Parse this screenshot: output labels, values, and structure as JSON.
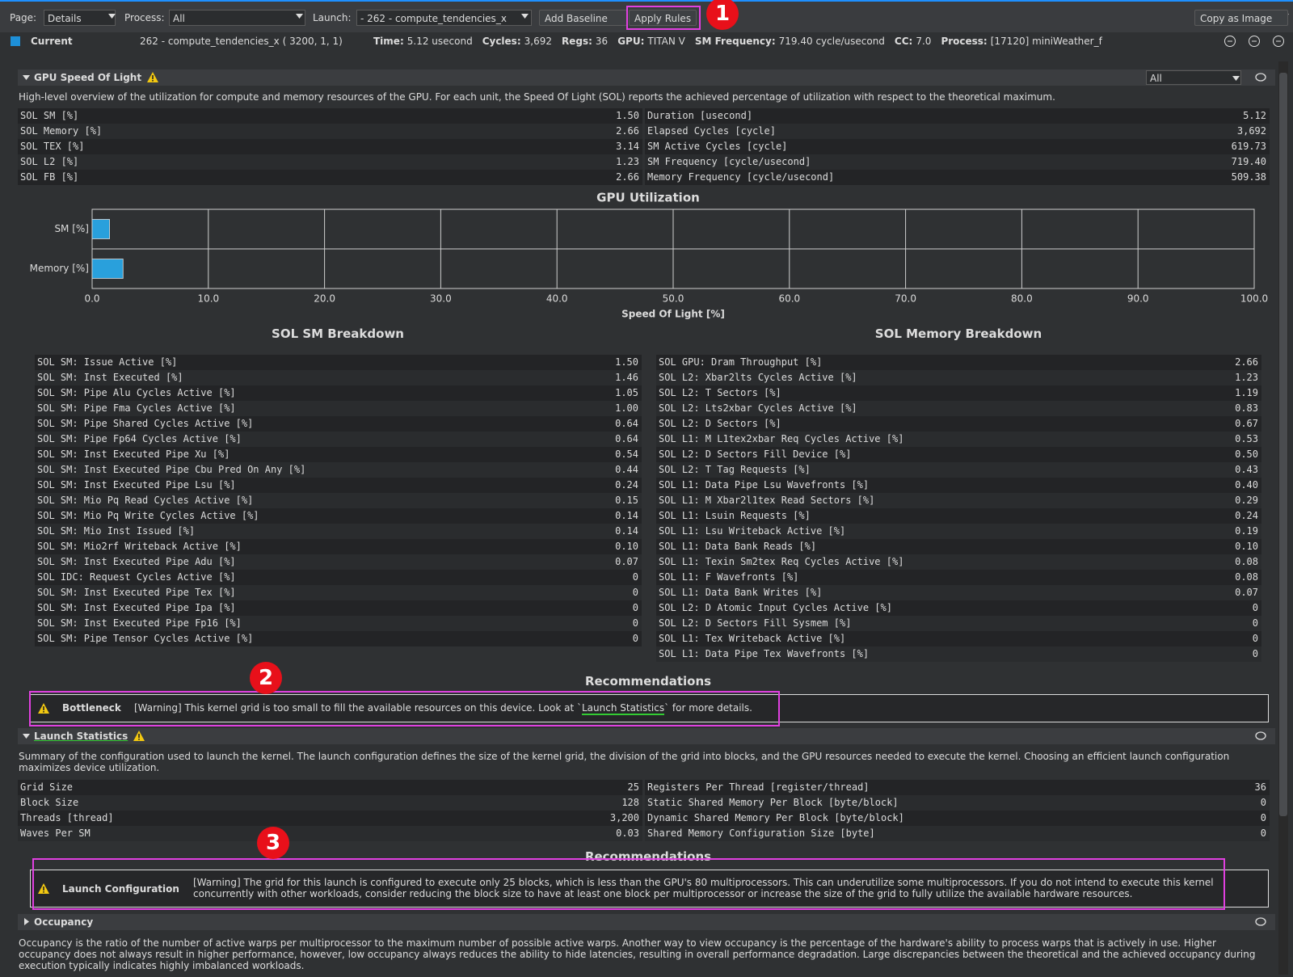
{
  "toolbar": {
    "page_label": "Page:",
    "page_value": "Details",
    "process_label": "Process:",
    "process_value": "All",
    "launch_label": "Launch:",
    "launch_value": "-  262 - compute_tendencies_x",
    "add_baseline": "Add Baseline",
    "apply_rules": "Apply Rules",
    "copy_as_image": "Copy as Image"
  },
  "current": {
    "label": "Current",
    "kernel": "262 - compute_tendencies_x ( 3200,   1,   1)",
    "fields": [
      {
        "label": "Time:",
        "value": "5.12 usecond"
      },
      {
        "label": "Cycles:",
        "value": "3,692"
      },
      {
        "label": "Regs:",
        "value": "36"
      },
      {
        "label": "GPU:",
        "value": "TITAN V"
      },
      {
        "label": "SM Frequency:",
        "value": "719.40 cycle/usecond"
      },
      {
        "label": "CC:",
        "value": "7.0"
      },
      {
        "label": "Process:",
        "value": "[17120] miniWeather_f"
      }
    ]
  },
  "speed_of_light": {
    "title": "GPU Speed Of Light",
    "filter": "All",
    "description": "High-level overview of the utilization for compute and memory resources of the GPU. For each unit, the Speed Of Light (SOL) reports the achieved percentage of utilization with respect to the theoretical maximum.",
    "left_table": [
      [
        "SOL SM [%]",
        "1.50"
      ],
      [
        "SOL Memory [%]",
        "2.66"
      ],
      [
        "SOL TEX [%]",
        "3.14"
      ],
      [
        "SOL L2 [%]",
        "1.23"
      ],
      [
        "SOL FB [%]",
        "2.66"
      ]
    ],
    "right_table": [
      [
        "Duration [usecond]",
        "5.12"
      ],
      [
        "Elapsed Cycles [cycle]",
        "3,692"
      ],
      [
        "SM Active Cycles [cycle]",
        "619.73"
      ],
      [
        "SM Frequency [cycle/usecond]",
        "719.40"
      ],
      [
        "Memory Frequency [cycle/usecond]",
        "509.38"
      ]
    ],
    "utilization_chart": {
      "type": "bar",
      "orientation": "horizontal",
      "title": "GPU Utilization",
      "x_label": "Speed Of Light [%]",
      "categories": [
        "SM [%]",
        "Memory [%]"
      ],
      "values": [
        1.5,
        2.66
      ],
      "color": "#29a0dc",
      "xlim": [
        0,
        100
      ],
      "xticks": [
        {
          "value": 0,
          "label": "0.0"
        },
        {
          "value": 10,
          "label": "10.0"
        },
        {
          "value": 20,
          "label": "20.0"
        },
        {
          "value": 30,
          "label": "30.0"
        },
        {
          "value": 40,
          "label": "40.0"
        },
        {
          "value": 50,
          "label": "50.0"
        },
        {
          "value": 60,
          "label": "60.0"
        },
        {
          "value": 70,
          "label": "70.0"
        },
        {
          "value": 80,
          "label": "80.0"
        },
        {
          "value": 90,
          "label": "90.0"
        },
        {
          "value": 100,
          "label": "100.0"
        }
      ],
      "grid": true
    },
    "sm_breakdown": {
      "title": "SOL SM Breakdown",
      "rows": [
        [
          "SOL SM: Issue Active [%]",
          "1.50"
        ],
        [
          "SOL SM: Inst Executed [%]",
          "1.46"
        ],
        [
          "SOL SM: Pipe Alu Cycles Active [%]",
          "1.05"
        ],
        [
          "SOL SM: Pipe Fma Cycles Active [%]",
          "1.00"
        ],
        [
          "SOL SM: Pipe Shared Cycles Active [%]",
          "0.64"
        ],
        [
          "SOL SM: Pipe Fp64 Cycles Active [%]",
          "0.64"
        ],
        [
          "SOL SM: Inst Executed Pipe Xu [%]",
          "0.54"
        ],
        [
          "SOL SM: Inst Executed Pipe Cbu Pred On Any [%]",
          "0.44"
        ],
        [
          "SOL SM: Inst Executed Pipe Lsu [%]",
          "0.24"
        ],
        [
          "SOL SM: Mio Pq Read Cycles Active [%]",
          "0.15"
        ],
        [
          "SOL SM: Mio Pq Write Cycles Active [%]",
          "0.14"
        ],
        [
          "SOL SM: Mio Inst Issued [%]",
          "0.14"
        ],
        [
          "SOL SM: Mio2rf Writeback Active [%]",
          "0.10"
        ],
        [
          "SOL SM: Inst Executed Pipe Adu [%]",
          "0.07"
        ],
        [
          "SOL IDC: Request Cycles Active [%]",
          "0"
        ],
        [
          "SOL SM: Inst Executed Pipe Tex [%]",
          "0"
        ],
        [
          "SOL SM: Inst Executed Pipe Ipa [%]",
          "0"
        ],
        [
          "SOL SM: Inst Executed Pipe Fp16 [%]",
          "0"
        ],
        [
          "SOL SM: Pipe Tensor Cycles Active [%]",
          "0"
        ]
      ]
    },
    "memory_breakdown": {
      "title": "SOL Memory Breakdown",
      "rows": [
        [
          "SOL GPU: Dram Throughput [%]",
          "2.66"
        ],
        [
          "SOL L2: Xbar2lts Cycles Active [%]",
          "1.23"
        ],
        [
          "SOL L2: T Sectors [%]",
          "1.19"
        ],
        [
          "SOL L2: Lts2xbar Cycles Active [%]",
          "0.83"
        ],
        [
          "SOL L2: D Sectors [%]",
          "0.67"
        ],
        [
          "SOL L1: M L1tex2xbar Req Cycles Active [%]",
          "0.53"
        ],
        [
          "SOL L2: D Sectors Fill Device [%]",
          "0.50"
        ],
        [
          "SOL L2: T Tag Requests [%]",
          "0.43"
        ],
        [
          "SOL L1: Data Pipe Lsu Wavefronts [%]",
          "0.40"
        ],
        [
          "SOL L1: M Xbar2l1tex Read Sectors [%]",
          "0.29"
        ],
        [
          "SOL L1: Lsuin Requests [%]",
          "0.24"
        ],
        [
          "SOL L1: Lsu Writeback Active [%]",
          "0.19"
        ],
        [
          "SOL L1: Data Bank Reads [%]",
          "0.10"
        ],
        [
          "SOL L1: Texin Sm2tex Req Cycles Active [%]",
          "0.08"
        ],
        [
          "SOL L1: F Wavefronts [%]",
          "0.08"
        ],
        [
          "SOL L1: Data Bank Writes [%]",
          "0.07"
        ],
        [
          "SOL L2: D Atomic Input Cycles Active [%]",
          "0"
        ],
        [
          "SOL L2: D Sectors Fill Sysmem [%]",
          "0"
        ],
        [
          "SOL L1: Tex Writeback Active [%]",
          "0"
        ],
        [
          "SOL L1: Data Pipe Tex Wavefronts [%]",
          "0"
        ]
      ]
    },
    "recommendations_title": "Recommendations",
    "recommendation": {
      "title": "Bottleneck",
      "text_before": "[Warning] This kernel grid is too small to fill the available resources on this device. Look at `",
      "link": "Launch Statistics",
      "text_after": "` for more details."
    }
  },
  "launch_statistics": {
    "title": "Launch Statistics",
    "description": "Summary of the configuration used to launch the kernel. The launch configuration defines the size of the kernel grid, the division of the grid into blocks, and the GPU resources needed to execute the kernel. Choosing an efficient launch configuration maximizes device utilization.",
    "left_table": [
      [
        "Grid Size",
        "25"
      ],
      [
        "Block Size",
        "128"
      ],
      [
        "Threads [thread]",
        "3,200"
      ],
      [
        "Waves Per SM",
        "0.03"
      ]
    ],
    "right_table": [
      [
        "Registers Per Thread [register/thread]",
        "36"
      ],
      [
        "Static Shared Memory Per Block [byte/block]",
        "0"
      ],
      [
        "Dynamic Shared Memory Per Block [byte/block]",
        "0"
      ],
      [
        "Shared Memory Configuration Size [byte]",
        "0"
      ]
    ],
    "recommendations_title": "Recommendations",
    "recommendation": {
      "title": "Launch Configuration",
      "text": "[Warning] The grid for this launch is configured to execute only 25 blocks, which is less than the GPU's 80 multiprocessors. This can underutilize some multiprocessors. If you do not intend to execute this kernel concurrently with other workloads, consider reducing the block size to have at least one block per multiprocessor or increase the size of the grid to fully utilize the available hardware resources."
    }
  },
  "occupancy": {
    "title": "Occupancy",
    "description": "Occupancy is the ratio of the number of active warps per multiprocessor to the maximum number of possible active warps. Another way to view occupancy is the percentage of the hardware's ability to process warps that is actively in use. Higher occupancy does not always result in higher performance, however, low occupancy always reduces the ability to hide latencies, resulting in overall performance degradation. Large discrepancies between the theoretical and the achieved occupancy during execution typically indicates highly imbalanced workloads."
  },
  "annotations": [
    "1",
    "2",
    "3"
  ]
}
